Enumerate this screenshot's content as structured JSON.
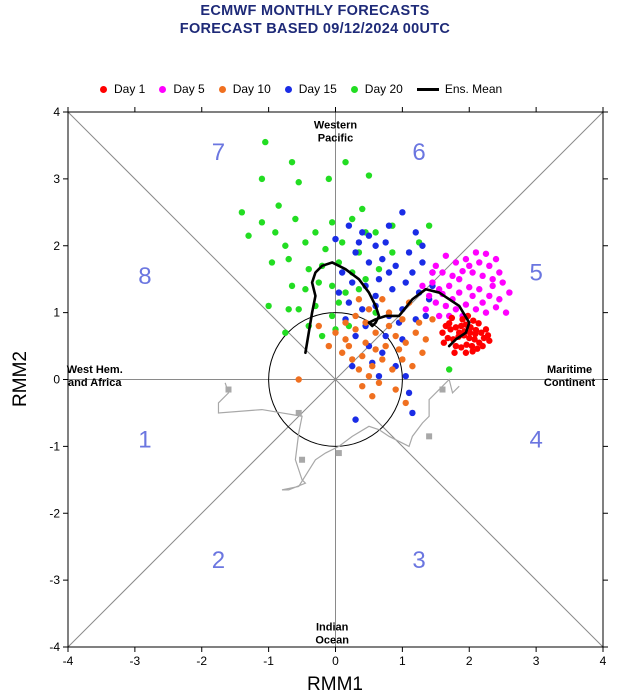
{
  "title": {
    "line1": "ECMWF MONTHLY FORECASTS",
    "line2": "FORECAST  BASED 09/12/2024 00UTC"
  },
  "legend": [
    {
      "label": "Day 1",
      "color": "#ff0000",
      "kind": "dot"
    },
    {
      "label": "Day 5",
      "color": "#ff00ff",
      "kind": "dot"
    },
    {
      "label": "Day 10",
      "color": "#f07020",
      "kind": "dot"
    },
    {
      "label": "Day 15",
      "color": "#1a2ce6",
      "kind": "dot"
    },
    {
      "label": "Day 20",
      "color": "#22dd22",
      "kind": "dot"
    },
    {
      "label": "Ens. Mean",
      "color": "#000000",
      "kind": "line"
    }
  ],
  "chart_data": {
    "type": "scatter",
    "xlabel": "RMM1",
    "ylabel": "RMM2",
    "xlim": [
      -4,
      4
    ],
    "ylim": [
      -4,
      4
    ],
    "xticks": [
      "-4",
      "-3",
      "-2",
      "-1",
      "0",
      "1",
      "2",
      "3",
      "4"
    ],
    "yticks": [
      "-4",
      "-3",
      "-2",
      "-1",
      "0",
      "1",
      "2",
      "3",
      "4"
    ],
    "phases": [
      {
        "label": "1",
        "x": -2.85,
        "y": -0.9
      },
      {
        "label": "2",
        "x": -1.75,
        "y": -2.7
      },
      {
        "label": "3",
        "x": 1.25,
        "y": -2.7
      },
      {
        "label": "4",
        "x": 3.0,
        "y": -0.9
      },
      {
        "label": "5",
        "x": 3.0,
        "y": 1.6
      },
      {
        "label": "6",
        "x": 1.25,
        "y": 3.4
      },
      {
        "label": "7",
        "x": -1.75,
        "y": 3.4
      },
      {
        "label": "8",
        "x": -2.85,
        "y": 1.55
      }
    ],
    "regions": [
      {
        "lines": [
          "Western",
          "Pacific"
        ],
        "x": 0.0,
        "y": 3.75
      },
      {
        "lines": [
          "West Hem.",
          "and Africa"
        ],
        "x": -3.6,
        "y": 0.1
      },
      {
        "lines": [
          "Maritime",
          "Continent"
        ],
        "x": 3.5,
        "y": 0.1
      },
      {
        "lines": [
          "Indian",
          "Ocean"
        ],
        "x": -0.05,
        "y": -3.75
      }
    ],
    "observed_track": {
      "color": "#a8a8a8",
      "x": [
        -1.65,
        -1.6,
        -1.75,
        -1.75,
        -1.1,
        -0.8,
        -0.5,
        -0.55,
        -0.6,
        -0.5,
        -0.45,
        -0.7,
        -0.8,
        -0.55,
        -0.3,
        -0.15,
        0.05,
        0.25,
        0.5,
        0.65,
        0.8,
        1.0,
        1.1,
        1.15,
        1.3,
        1.4,
        1.4,
        1.55,
        1.7,
        1.75,
        1.85
      ],
      "y": [
        -0.05,
        -0.2,
        -0.35,
        -0.5,
        -0.45,
        -0.5,
        -0.55,
        -0.8,
        -1.2,
        -1.5,
        -1.55,
        -1.65,
        -1.65,
        -1.6,
        -1.2,
        -1.1,
        -1.0,
        -0.85,
        -0.7,
        -0.75,
        -0.85,
        -0.95,
        -1.0,
        -0.85,
        -0.65,
        -0.55,
        -0.3,
        -0.15,
        0.0,
        -0.2,
        -0.1
      ]
    },
    "observed_markers": {
      "x": [
        -1.6,
        -0.55,
        -0.5,
        0.05,
        1.4,
        1.6
      ],
      "y": [
        -0.15,
        -0.5,
        -1.2,
        -1.1,
        -0.85,
        -0.15
      ]
    },
    "ens_mean": {
      "x": [
        -0.45,
        -0.4,
        -0.35,
        -0.3,
        -0.35,
        -0.3,
        -0.2,
        -0.05,
        0.15,
        0.35,
        0.5,
        0.6,
        0.65,
        0.6,
        0.55,
        0.5,
        0.6,
        0.75,
        0.95,
        1.15,
        1.35,
        1.55,
        1.85,
        2.0,
        1.95,
        1.8,
        1.7
      ],
      "y": [
        0.4,
        0.7,
        1.0,
        1.25,
        1.45,
        1.6,
        1.7,
        1.75,
        1.65,
        1.5,
        1.3,
        1.1,
        0.95,
        0.85,
        0.8,
        0.85,
        0.9,
        0.95,
        0.95,
        1.2,
        1.35,
        1.3,
        1.1,
        0.85,
        0.7,
        0.6,
        0.5
      ]
    },
    "series": [
      {
        "name": "Day 1",
        "color": "#ff0000",
        "points": [
          [
            1.65,
            0.8
          ],
          [
            1.72,
            0.75
          ],
          [
            1.8,
            0.78
          ],
          [
            1.88,
            0.8
          ],
          [
            1.95,
            0.82
          ],
          [
            2.02,
            0.78
          ],
          [
            2.1,
            0.74
          ],
          [
            2.18,
            0.7
          ],
          [
            1.68,
            0.62
          ],
          [
            1.76,
            0.6
          ],
          [
            1.84,
            0.64
          ],
          [
            1.92,
            0.66
          ],
          [
            2.0,
            0.62
          ],
          [
            2.08,
            0.6
          ],
          [
            2.15,
            0.55
          ],
          [
            2.22,
            0.62
          ],
          [
            1.8,
            0.5
          ],
          [
            1.88,
            0.48
          ],
          [
            1.96,
            0.52
          ],
          [
            2.04,
            0.5
          ],
          [
            2.12,
            0.46
          ],
          [
            1.9,
            0.9
          ],
          [
            1.98,
            0.95
          ],
          [
            2.06,
            0.88
          ],
          [
            1.74,
            0.92
          ],
          [
            2.25,
            0.75
          ],
          [
            2.28,
            0.66
          ],
          [
            1.6,
            0.7
          ],
          [
            1.7,
            0.84
          ],
          [
            2.14,
            0.84
          ],
          [
            1.85,
            0.7
          ],
          [
            1.93,
            0.72
          ],
          [
            2.01,
            0.7
          ],
          [
            2.09,
            0.68
          ],
          [
            1.95,
            0.4
          ],
          [
            2.05,
            0.42
          ],
          [
            2.2,
            0.5
          ],
          [
            1.78,
            0.4
          ],
          [
            1.62,
            0.55
          ],
          [
            2.3,
            0.58
          ]
        ]
      },
      {
        "name": "Day 5",
        "color": "#ff00ff",
        "points": [
          [
            1.65,
            1.85
          ],
          [
            1.8,
            1.75
          ],
          [
            1.95,
            1.8
          ],
          [
            2.1,
            1.9
          ],
          [
            2.25,
            1.88
          ],
          [
            2.4,
            1.8
          ],
          [
            1.6,
            1.6
          ],
          [
            1.75,
            1.55
          ],
          [
            1.9,
            1.62
          ],
          [
            2.05,
            1.6
          ],
          [
            2.2,
            1.55
          ],
          [
            2.35,
            1.5
          ],
          [
            2.5,
            1.45
          ],
          [
            1.55,
            1.35
          ],
          [
            1.7,
            1.4
          ],
          [
            1.85,
            1.3
          ],
          [
            2.0,
            1.38
          ],
          [
            2.15,
            1.35
          ],
          [
            2.3,
            1.25
          ],
          [
            2.45,
            1.2
          ],
          [
            1.5,
            1.15
          ],
          [
            1.65,
            1.1
          ],
          [
            1.8,
            1.05
          ],
          [
            1.95,
            1.12
          ],
          [
            2.1,
            1.05
          ],
          [
            2.25,
            1.0
          ],
          [
            2.4,
            1.08
          ],
          [
            2.55,
            1.0
          ],
          [
            1.4,
            1.25
          ],
          [
            1.45,
            1.45
          ],
          [
            1.5,
            1.7
          ],
          [
            2.0,
            1.7
          ],
          [
            2.3,
            1.7
          ],
          [
            1.7,
            0.95
          ],
          [
            2.2,
            1.15
          ],
          [
            1.85,
            1.5
          ],
          [
            1.35,
            1.05
          ],
          [
            2.6,
            1.3
          ],
          [
            1.6,
            1.28
          ],
          [
            2.05,
            1.25
          ],
          [
            1.9,
            0.95
          ],
          [
            1.45,
            1.6
          ],
          [
            2.15,
            1.75
          ],
          [
            1.75,
            1.2
          ],
          [
            2.35,
            1.4
          ],
          [
            1.55,
            0.95
          ],
          [
            1.3,
            1.4
          ],
          [
            2.45,
            1.6
          ]
        ]
      },
      {
        "name": "Day 10",
        "color": "#f07020",
        "points": [
          [
            0.0,
            0.7
          ],
          [
            0.15,
            0.6
          ],
          [
            0.3,
            0.75
          ],
          [
            0.45,
            0.55
          ],
          [
            0.6,
            0.7
          ],
          [
            0.75,
            0.5
          ],
          [
            0.9,
            0.65
          ],
          [
            1.05,
            0.55
          ],
          [
            1.2,
            0.7
          ],
          [
            1.35,
            0.6
          ],
          [
            0.1,
            0.4
          ],
          [
            0.25,
            0.3
          ],
          [
            0.4,
            0.35
          ],
          [
            0.55,
            0.2
          ],
          [
            0.7,
            0.3
          ],
          [
            0.85,
            0.15
          ],
          [
            1.0,
            0.3
          ],
          [
            1.15,
            0.2
          ],
          [
            0.5,
            0.05
          ],
          [
            0.65,
            -0.05
          ],
          [
            0.4,
            -0.1
          ],
          [
            0.55,
            -0.25
          ],
          [
            0.3,
            0.95
          ],
          [
            0.5,
            1.05
          ],
          [
            0.8,
            1.0
          ],
          [
            1.0,
            0.9
          ],
          [
            1.25,
            0.85
          ],
          [
            -0.1,
            0.5
          ],
          [
            0.2,
            0.5
          ],
          [
            0.35,
            1.2
          ],
          [
            0.7,
            1.2
          ],
          [
            1.1,
            1.15
          ],
          [
            0.95,
            0.45
          ],
          [
            0.6,
            0.45
          ],
          [
            -0.55,
            0.0
          ],
          [
            1.05,
            -0.35
          ],
          [
            0.8,
            0.8
          ],
          [
            0.45,
            0.85
          ],
          [
            1.3,
            0.4
          ],
          [
            1.45,
            0.9
          ],
          [
            -0.25,
            0.8
          ],
          [
            0.15,
            0.85
          ],
          [
            0.9,
            -0.15
          ],
          [
            0.35,
            0.15
          ]
        ]
      },
      {
        "name": "Day 15",
        "color": "#1a2ce6",
        "points": [
          [
            0.0,
            2.1
          ],
          [
            0.2,
            2.3
          ],
          [
            0.4,
            2.2
          ],
          [
            0.6,
            2.0
          ],
          [
            0.8,
            2.3
          ],
          [
            1.0,
            2.5
          ],
          [
            1.2,
            2.2
          ],
          [
            0.3,
            1.9
          ],
          [
            0.5,
            1.75
          ],
          [
            0.7,
            1.8
          ],
          [
            0.9,
            1.7
          ],
          [
            1.1,
            1.9
          ],
          [
            1.3,
            1.75
          ],
          [
            1.45,
            1.6
          ],
          [
            0.1,
            1.6
          ],
          [
            0.25,
            1.45
          ],
          [
            0.45,
            1.4
          ],
          [
            0.65,
            1.5
          ],
          [
            0.85,
            1.35
          ],
          [
            1.05,
            1.45
          ],
          [
            1.25,
            1.3
          ],
          [
            1.4,
            1.2
          ],
          [
            0.2,
            1.15
          ],
          [
            0.4,
            1.05
          ],
          [
            0.6,
            1.1
          ],
          [
            0.8,
            0.95
          ],
          [
            1.0,
            1.05
          ],
          [
            1.2,
            0.9
          ],
          [
            1.35,
            0.95
          ],
          [
            0.3,
            0.65
          ],
          [
            0.5,
            0.5
          ],
          [
            0.7,
            0.4
          ],
          [
            0.9,
            0.2
          ],
          [
            1.05,
            0.05
          ],
          [
            1.1,
            -0.2
          ],
          [
            1.15,
            -0.5
          ],
          [
            0.3,
            -0.6
          ],
          [
            0.55,
            0.25
          ],
          [
            0.75,
            0.65
          ],
          [
            0.95,
            0.85
          ],
          [
            1.15,
            1.6
          ],
          [
            0.35,
            2.05
          ],
          [
            0.05,
            1.3
          ],
          [
            1.3,
            2.0
          ],
          [
            0.6,
            1.25
          ],
          [
            0.15,
            0.9
          ],
          [
            0.45,
            0.8
          ],
          [
            0.8,
            1.6
          ],
          [
            1.0,
            0.6
          ],
          [
            1.45,
            1.4
          ],
          [
            0.5,
            2.15
          ],
          [
            0.75,
            2.05
          ],
          [
            0.25,
            0.2
          ],
          [
            0.65,
            0.05
          ]
        ]
      },
      {
        "name": "Day 20",
        "color": "#22dd22",
        "points": [
          [
            -1.05,
            3.55
          ],
          [
            -0.65,
            3.25
          ],
          [
            -1.1,
            3.0
          ],
          [
            -0.55,
            2.95
          ],
          [
            -0.1,
            3.0
          ],
          [
            0.15,
            3.25
          ],
          [
            0.5,
            3.05
          ],
          [
            -1.4,
            2.5
          ],
          [
            -1.1,
            2.35
          ],
          [
            -0.9,
            2.2
          ],
          [
            -0.6,
            2.4
          ],
          [
            -0.3,
            2.2
          ],
          [
            -0.05,
            2.35
          ],
          [
            0.25,
            2.4
          ],
          [
            0.45,
            2.2
          ],
          [
            -1.3,
            2.15
          ],
          [
            -0.75,
            2.0
          ],
          [
            -0.45,
            2.05
          ],
          [
            -0.15,
            1.95
          ],
          [
            0.1,
            2.05
          ],
          [
            0.35,
            1.9
          ],
          [
            0.6,
            2.2
          ],
          [
            0.85,
            2.3
          ],
          [
            -0.95,
            1.75
          ],
          [
            -0.7,
            1.8
          ],
          [
            -0.4,
            1.65
          ],
          [
            -0.2,
            1.7
          ],
          [
            0.05,
            1.75
          ],
          [
            0.25,
            1.6
          ],
          [
            0.45,
            1.5
          ],
          [
            0.65,
            1.65
          ],
          [
            -0.65,
            1.4
          ],
          [
            -0.45,
            1.35
          ],
          [
            -0.25,
            1.45
          ],
          [
            -0.05,
            1.4
          ],
          [
            0.15,
            1.3
          ],
          [
            0.35,
            1.35
          ],
          [
            -1.0,
            1.1
          ],
          [
            -0.7,
            1.05
          ],
          [
            -0.3,
            1.1
          ],
          [
            -0.05,
            0.95
          ],
          [
            0.2,
            0.8
          ],
          [
            -0.4,
            0.8
          ],
          [
            0.0,
            0.75
          ],
          [
            1.4,
            2.3
          ],
          [
            1.7,
            0.15
          ],
          [
            -0.75,
            0.7
          ],
          [
            -0.2,
            0.65
          ],
          [
            0.6,
            1.0
          ],
          [
            0.4,
            2.55
          ],
          [
            -0.85,
            2.6
          ],
          [
            0.05,
            1.15
          ],
          [
            -0.55,
            1.05
          ],
          [
            0.85,
            1.9
          ],
          [
            1.25,
            2.05
          ]
        ]
      }
    ]
  },
  "axis_titles": {
    "x": "RMM1",
    "y": "RMM2"
  }
}
